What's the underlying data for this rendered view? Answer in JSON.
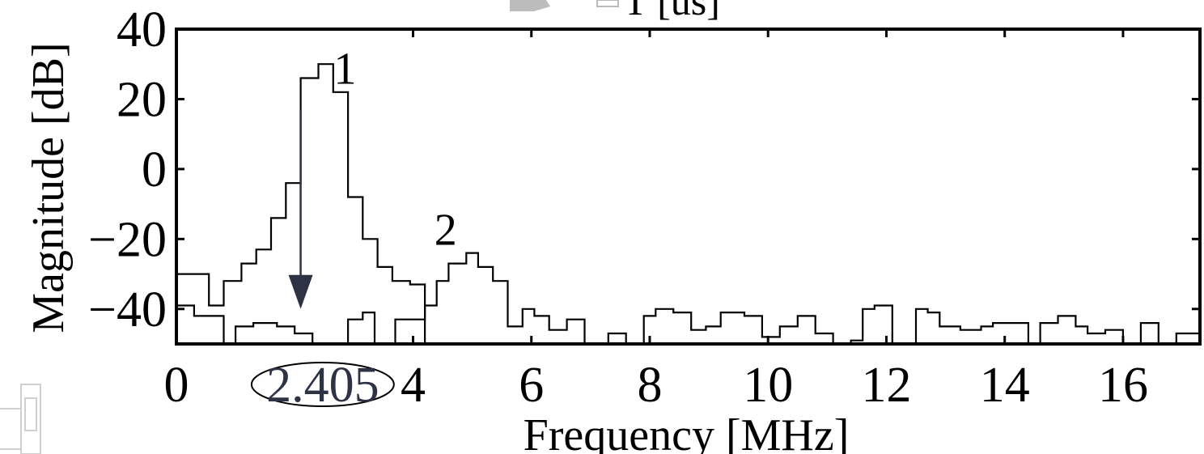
{
  "chart_data": {
    "type": "line",
    "step": true,
    "xlabel": "Frequency [MHz]",
    "ylabel": "Magnitude [dB]",
    "xlim": [
      0,
      17.3
    ],
    "ylim": [
      -50,
      40
    ],
    "xticks": [
      0,
      4,
      6,
      8,
      10,
      12,
      14,
      16
    ],
    "xtick_labels": [
      "0",
      "4",
      "6",
      "8",
      "10",
      "12",
      "14",
      "16"
    ],
    "yticks": [
      40,
      20,
      0,
      -20,
      -40
    ],
    "ytick_labels": [
      "40",
      "20",
      "0",
      "−20",
      "−40"
    ],
    "grid": false,
    "series": [
      {
        "x": [
          0,
          0.55,
          0.8,
          1.1,
          1.35,
          1.6,
          1.85,
          2.1,
          2.4,
          2.65,
          2.9,
          3.15,
          3.4,
          3.65,
          3.95,
          4.2
        ],
        "y": [
          -30,
          -39,
          -32,
          -27,
          -23,
          -14,
          -4,
          26,
          30,
          22,
          -8,
          -20,
          -28,
          -32,
          -33,
          -50
        ]
      },
      {
        "x": [
          0,
          0.3,
          0.8,
          1.0,
          1.3,
          1.7,
          2.0,
          2.3,
          2.9,
          3.15,
          3.35,
          3.7,
          4.2,
          4.4,
          4.6,
          4.9,
          5.1,
          5.35,
          5.6,
          5.85,
          6.05,
          6.3,
          6.6,
          6.9,
          7.3,
          7.6,
          7.9,
          8.1,
          8.4,
          8.7,
          8.95,
          9.2,
          9.6,
          9.9,
          10.2,
          10.5,
          10.8,
          11.1,
          11.4,
          11.6,
          11.8,
          12.1,
          12.5,
          12.7,
          12.9,
          13.25,
          13.6,
          13.8,
          14.1,
          14.4,
          14.6,
          14.9,
          15.2,
          15.4,
          15.7,
          16.0,
          16.3,
          16.6,
          16.9,
          17.2
        ],
        "y": [
          -39,
          -42,
          -50,
          -45,
          -44,
          -45,
          -47,
          -50,
          -43,
          -41,
          -50,
          -43,
          -39,
          -32,
          -27,
          -24,
          -28,
          -32,
          -45,
          -40,
          -42,
          -46,
          -43,
          -50,
          -47,
          -50,
          -42,
          -40,
          -41,
          -46,
          -45,
          -41,
          -42,
          -48,
          -45,
          -42,
          -47,
          -50,
          -49,
          -40,
          -39,
          -50,
          -40,
          -41,
          -45,
          -46,
          -45,
          -44,
          -44,
          -50,
          -44,
          -42,
          -45,
          -47,
          -46,
          -50,
          -44,
          -50,
          -47,
          -47
        ]
      }
    ],
    "annotations": [
      {
        "text": "1",
        "x": 2.85,
        "y": 29
      },
      {
        "text": "2",
        "x": 4.55,
        "y": -17
      },
      {
        "text": "2.405",
        "x": 2.405,
        "y": -60,
        "note": "circled tick label"
      }
    ],
    "arrow": {
      "x": 2.1,
      "y_from": 17,
      "y_to": -40
    },
    "top_crop_text": "T [us]"
  }
}
